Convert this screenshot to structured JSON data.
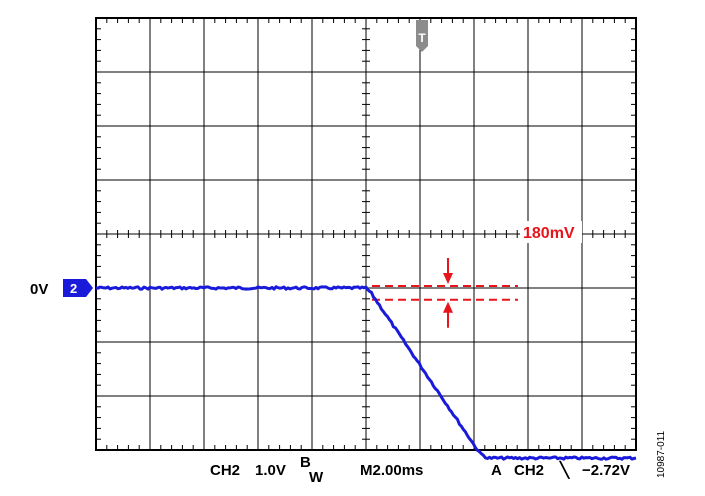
{
  "chart_data": {
    "type": "line",
    "grid": true,
    "divisions": {
      "x": 10,
      "y": 8
    },
    "x_unit_per_div_ms": 2.0,
    "y_unit_per_div_v": 1.0,
    "x_range_ms": [
      -10,
      10
    ],
    "y_range_v": [
      -3,
      5
    ],
    "series": [
      {
        "color": "#1a1adb",
        "x_ms": [
          -10,
          0,
          0.2,
          4.2,
          4.5,
          10
        ],
        "y_v": [
          0,
          0,
          -0.1,
          -3.05,
          -3.15,
          -3.15
        ]
      }
    ],
    "ground_marker": {
      "label": "0V",
      "channel": "2",
      "color": "#1a1adb"
    },
    "trigger_marker": {
      "label": "T",
      "x_ms": 2.0,
      "color": "#8c8c8c"
    },
    "annotation": {
      "text": "180mV",
      "color": "#e8141b",
      "lines_v": [
        0.0,
        -0.18
      ]
    },
    "footer": {
      "channel": "CH2",
      "scale": "1.0V",
      "bw_sup": "B",
      "bw_sub": "W",
      "timebase": "M2.00ms",
      "trigger_mode": "A",
      "trigger_channel": "CH2",
      "trigger_symbol": "╲",
      "trigger_level": "−2.72V"
    },
    "figure_id": "10987-011"
  }
}
